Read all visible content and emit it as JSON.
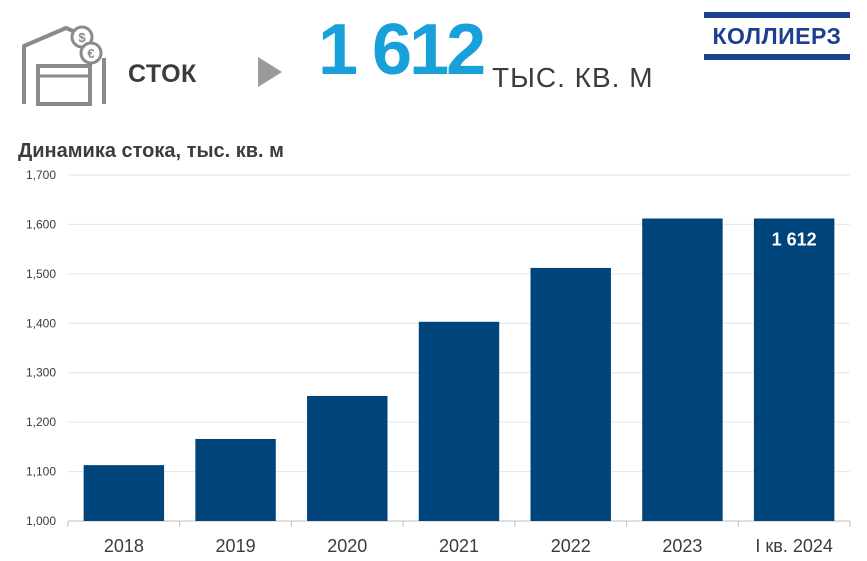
{
  "header": {
    "stock_label": "СТОК",
    "value": "1 612",
    "unit": "ТЫС. КВ. М",
    "logo_text": "КОЛЛИЕРЗ"
  },
  "colors": {
    "bar": "#00447c",
    "accent": "#18a0db",
    "icon_gray": "#8a8a8a",
    "logo": "#1d3f8f",
    "grid": "#e6e6e6"
  },
  "chart_data": {
    "type": "bar",
    "title": "Динамика стока, тыс. кв. м",
    "categories": [
      "2018",
      "2019",
      "2020",
      "2021",
      "2022",
      "2023",
      "I кв. 2024"
    ],
    "values": [
      1113,
      1166,
      1253,
      1403,
      1512,
      1612,
      1612
    ],
    "ylim": [
      1000,
      1700
    ],
    "yticks": [
      1000,
      1100,
      1200,
      1300,
      1400,
      1500,
      1600,
      1700
    ],
    "ytick_labels": [
      "1,000",
      "1,100",
      "1,200",
      "1,300",
      "1,400",
      "1,500",
      "1,600",
      "1,700"
    ],
    "data_labels": [
      "",
      "",
      "",
      "",
      "",
      "",
      "1 612"
    ],
    "xlabel": "",
    "ylabel": "",
    "grid": true
  }
}
